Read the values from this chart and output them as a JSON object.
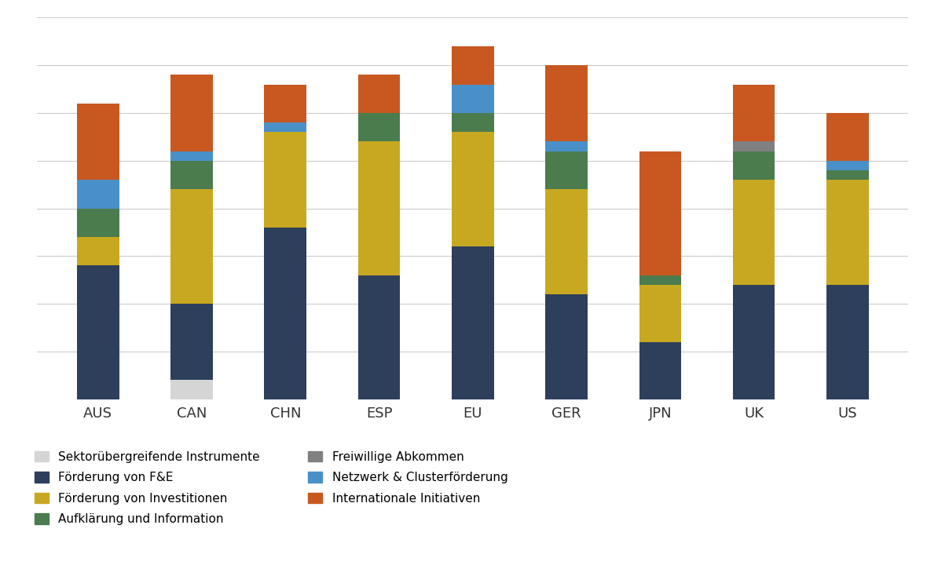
{
  "categories": [
    "AUS",
    "CAN",
    "CHN",
    "ESP",
    "EU",
    "GER",
    "JPN",
    "UK",
    "US"
  ],
  "legend_order": [
    "Sektorübergreifende Instrumente",
    "Förderung von F&E",
    "Förderung von Investitionen",
    "Aufklärung und Information",
    "Freiwillige Abkommen",
    "Netzwerk & Clusterförderung",
    "Internationale Initiativen"
  ],
  "series": {
    "Sektorübergreifende Instrumente": {
      "color": "#d5d5d5",
      "values": [
        0,
        2,
        0,
        0,
        0,
        0,
        0,
        0,
        0
      ]
    },
    "Förderung von F&E": {
      "color": "#2e3f5c",
      "values": [
        14,
        8,
        18,
        13,
        16,
        11,
        6,
        12,
        12
      ]
    },
    "Förderung von Investitionen": {
      "color": "#c8a820",
      "values": [
        3,
        12,
        10,
        14,
        12,
        11,
        6,
        11,
        11
      ]
    },
    "Aufklärung und Information": {
      "color": "#4a7c4e",
      "values": [
        3,
        3,
        0,
        3,
        2,
        4,
        1,
        3,
        1
      ]
    },
    "Freiwillige Abkommen": {
      "color": "#808080",
      "values": [
        0,
        0,
        0,
        0,
        0,
        0,
        0,
        1,
        0
      ]
    },
    "Netzwerk & Clusterförderung": {
      "color": "#4a90c8",
      "values": [
        3,
        1,
        1,
        0,
        3,
        1,
        0,
        0,
        1
      ]
    },
    "Internationale Initiativen": {
      "color": "#c85820",
      "values": [
        8,
        8,
        4,
        4,
        4,
        8,
        13,
        6,
        5
      ]
    }
  },
  "background_color": "#ffffff",
  "grid_color": "#cccccc",
  "bar_width": 0.45,
  "tick_fontsize": 13,
  "legend_fontsize": 11,
  "ylim_max": 40
}
